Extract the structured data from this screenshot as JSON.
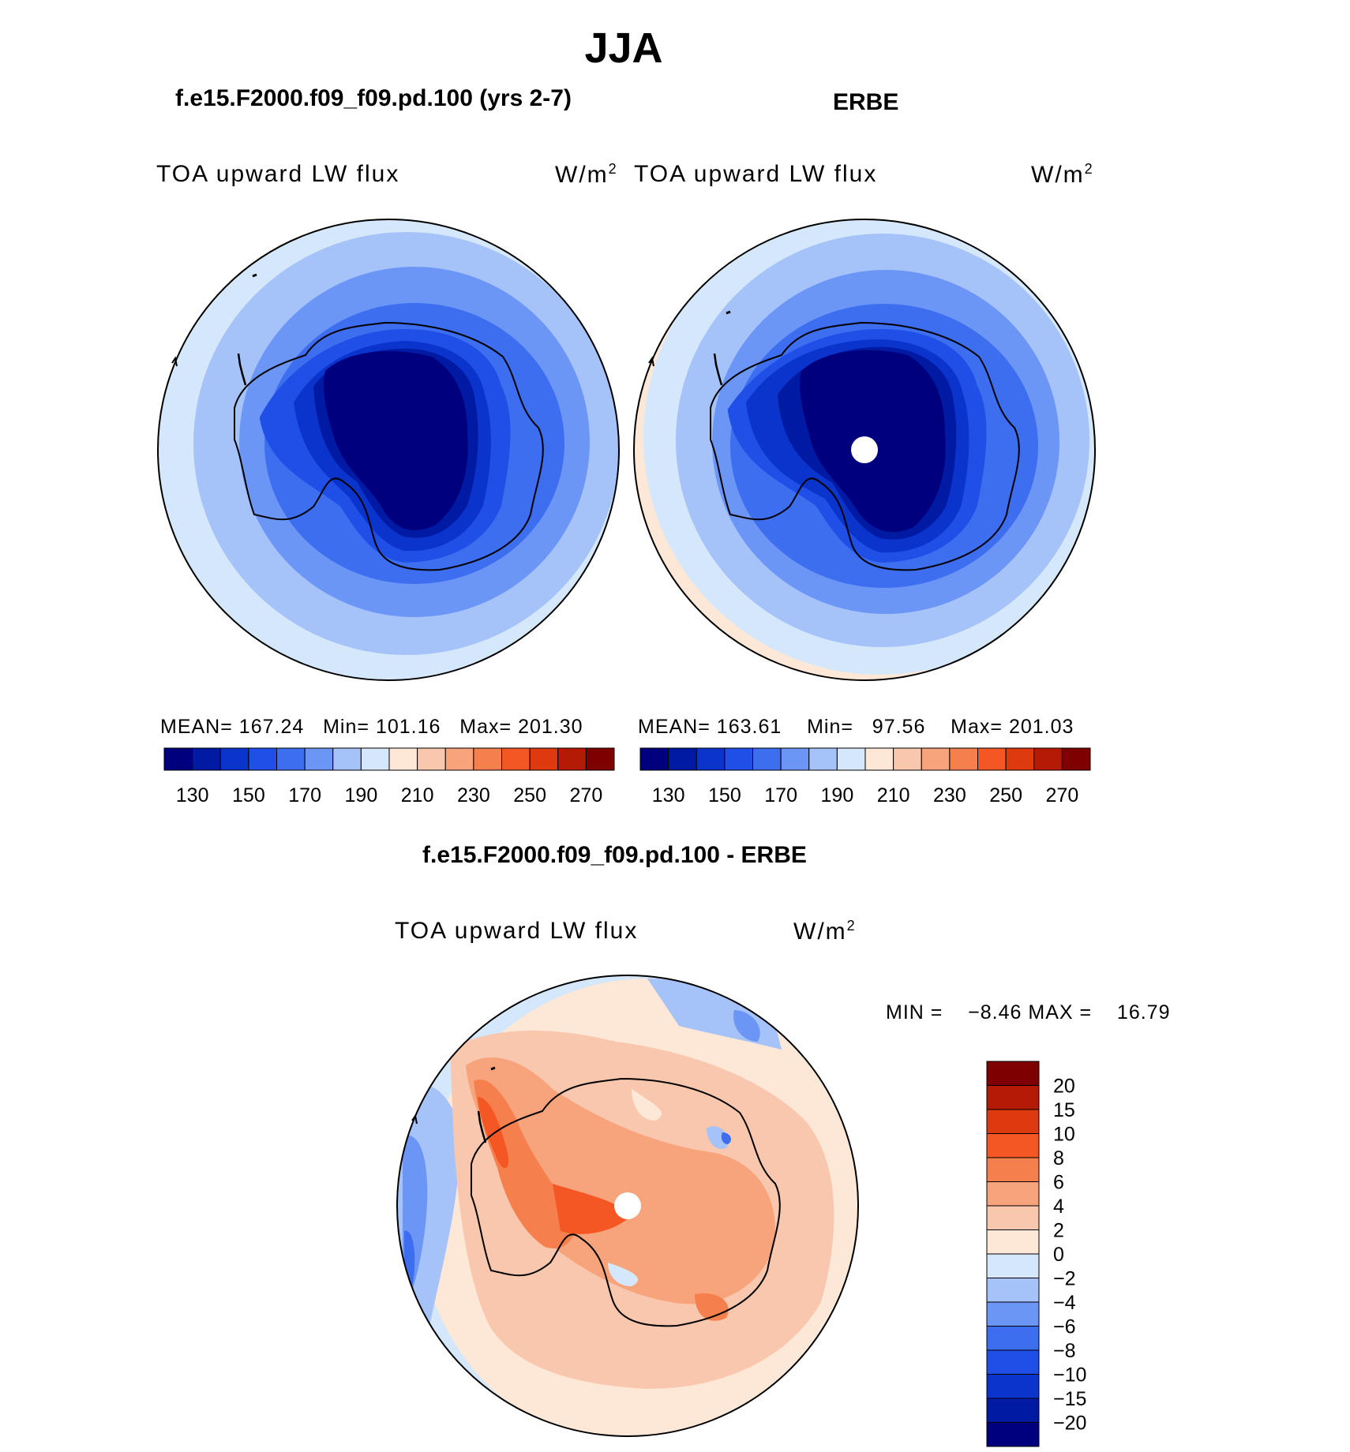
{
  "header": {
    "season": "JJA",
    "model_title": "f.e15.F2000.f09_f09.pd.100 (yrs 2-7)",
    "obs_title": "ERBE",
    "diff_title": "f.e15.F2000.f09_f09.pd.100 - ERBE"
  },
  "panels": {
    "model": {
      "variable": "TOA upward LW flux",
      "units": "W/m",
      "units_exp": "2",
      "stats": {
        "mean_label": "MEAN=",
        "mean": "167.24",
        "min_label": "Min=",
        "min": "101.16",
        "max_label": "Max=",
        "max": "201.30"
      }
    },
    "obs": {
      "variable": "TOA upward LW flux",
      "units": "W/m",
      "units_exp": "2",
      "stats": {
        "mean_label": "MEAN=",
        "mean": "163.61",
        "min_label": "Min=",
        "min": "97.56",
        "max_label": "Max=",
        "max": "201.03"
      }
    },
    "diff": {
      "variable": "TOA upward LW flux",
      "units": "W/m",
      "units_exp": "2",
      "stats": {
        "min_label": "MIN =",
        "min": "−8.46",
        "max_label": "MAX =",
        "max": "16.79"
      }
    }
  },
  "colorbars": {
    "absolute": {
      "colors": [
        "#00007f",
        "#001aa3",
        "#0a34cc",
        "#1f4fe6",
        "#3d6ef0",
        "#6b96f6",
        "#a5c2f9",
        "#d5e7fb",
        "#fde8d8",
        "#f9c7ad",
        "#f7a47c",
        "#f5804e",
        "#f45724",
        "#de3a10",
        "#b51a06",
        "#7f0000"
      ],
      "labels": [
        "130",
        "150",
        "170",
        "190",
        "210",
        "230",
        "250",
        "270"
      ]
    },
    "difference": {
      "colors": [
        "#7f0000",
        "#b51a06",
        "#de3a10",
        "#f45724",
        "#f5804e",
        "#f7a47c",
        "#f9c7ad",
        "#fde8d8",
        "#d5e7fb",
        "#a5c2f9",
        "#6b96f6",
        "#3d6ef0",
        "#1f4fe6",
        "#0a34cc",
        "#001aa3",
        "#00007f"
      ],
      "labels": [
        "20",
        "15",
        "10",
        "8",
        "6",
        "4",
        "2",
        "0",
        "−2",
        "−4",
        "−6",
        "−8",
        "−10",
        "−15",
        "−20"
      ]
    }
  }
}
